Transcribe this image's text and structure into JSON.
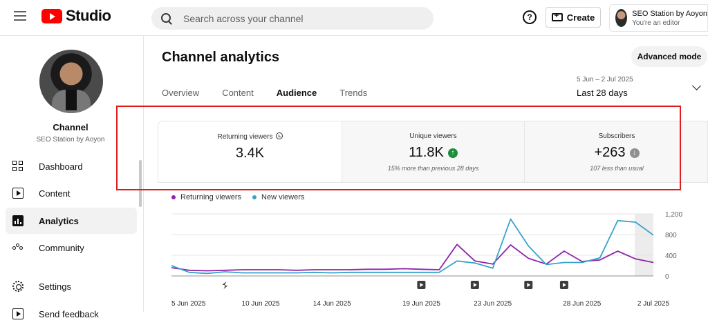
{
  "header": {
    "logo_text": "Studio",
    "search_placeholder": "Search across your channel",
    "help_label": "?",
    "create_label": "Create",
    "account_name": "SEO Station by Aoyon",
    "account_role": "You're an editor"
  },
  "sidebar": {
    "channel_title": "Channel",
    "channel_sub": "SEO Station by Aoyon",
    "items": [
      {
        "label": "Dashboard",
        "icon": "dashboard-icon"
      },
      {
        "label": "Content",
        "icon": "content-icon"
      },
      {
        "label": "Analytics",
        "icon": "analytics-icon",
        "active": true
      },
      {
        "label": "Community",
        "icon": "community-icon"
      },
      {
        "label": "Settings",
        "icon": "settings-icon"
      },
      {
        "label": "Send feedback",
        "icon": "feedback-icon"
      }
    ]
  },
  "main": {
    "title": "Channel analytics",
    "advanced_label": "Advanced mode",
    "tabs": [
      "Overview",
      "Content",
      "Audience",
      "Trends"
    ],
    "active_tab": "Audience",
    "date_range": "5 Jun – 2 Jul 2025",
    "date_period": "Last 28 days",
    "cards": [
      {
        "label": "Returning viewers",
        "value": "3.4K",
        "note": ""
      },
      {
        "label": "Unique viewers",
        "value": "11.8K",
        "note": "15% more than previous 28 days"
      },
      {
        "label": "Subscribers",
        "value": "+263",
        "note": "107 less than usual"
      }
    ],
    "legend": [
      {
        "name": "Returning viewers",
        "color": "#8e24aa"
      },
      {
        "name": "New viewers",
        "color": "#36a3c9"
      }
    ]
  },
  "chart_data": {
    "type": "line",
    "x": [
      "5 Jun",
      "6 Jun",
      "7 Jun",
      "8 Jun",
      "9 Jun",
      "10 Jun",
      "11 Jun",
      "12 Jun",
      "13 Jun",
      "14 Jun",
      "15 Jun",
      "16 Jun",
      "17 Jun",
      "18 Jun",
      "19 Jun",
      "20 Jun",
      "21 Jun",
      "22 Jun",
      "23 Jun",
      "24 Jun",
      "25 Jun",
      "26 Jun",
      "27 Jun",
      "28 Jun",
      "29 Jun",
      "30 Jun",
      "1 Jul",
      "2 Jul"
    ],
    "x_tick_labels": [
      "5 Jun 2025",
      "10 Jun 2025",
      "14 Jun 2025",
      "19 Jun 2025",
      "23 Jun 2025",
      "28 Jun 2025",
      "2 Jul 2025"
    ],
    "y_ticks": [
      "0",
      "400",
      "800",
      "1,200"
    ],
    "ylim": [
      0,
      1200
    ],
    "series": [
      {
        "name": "Returning viewers",
        "color": "#8e24aa",
        "values": [
          160,
          110,
          100,
          110,
          120,
          120,
          120,
          110,
          120,
          120,
          120,
          130,
          130,
          140,
          130,
          120,
          610,
          290,
          230,
          600,
          340,
          230,
          480,
          280,
          310,
          480,
          330,
          260
        ]
      },
      {
        "name": "New viewers",
        "color": "#36a3c9",
        "values": [
          200,
          70,
          50,
          80,
          60,
          60,
          60,
          60,
          70,
          60,
          70,
          70,
          70,
          70,
          70,
          70,
          290,
          250,
          150,
          1100,
          580,
          220,
          260,
          260,
          350,
          1070,
          1040,
          790
        ]
      }
    ],
    "markers": [
      {
        "day": "8 Jun",
        "type": "short"
      },
      {
        "day": "19 Jun",
        "type": "video"
      },
      {
        "day": "22 Jun",
        "type": "video"
      },
      {
        "day": "25 Jun",
        "type": "video"
      },
      {
        "day": "27 Jun",
        "type": "video"
      }
    ]
  }
}
